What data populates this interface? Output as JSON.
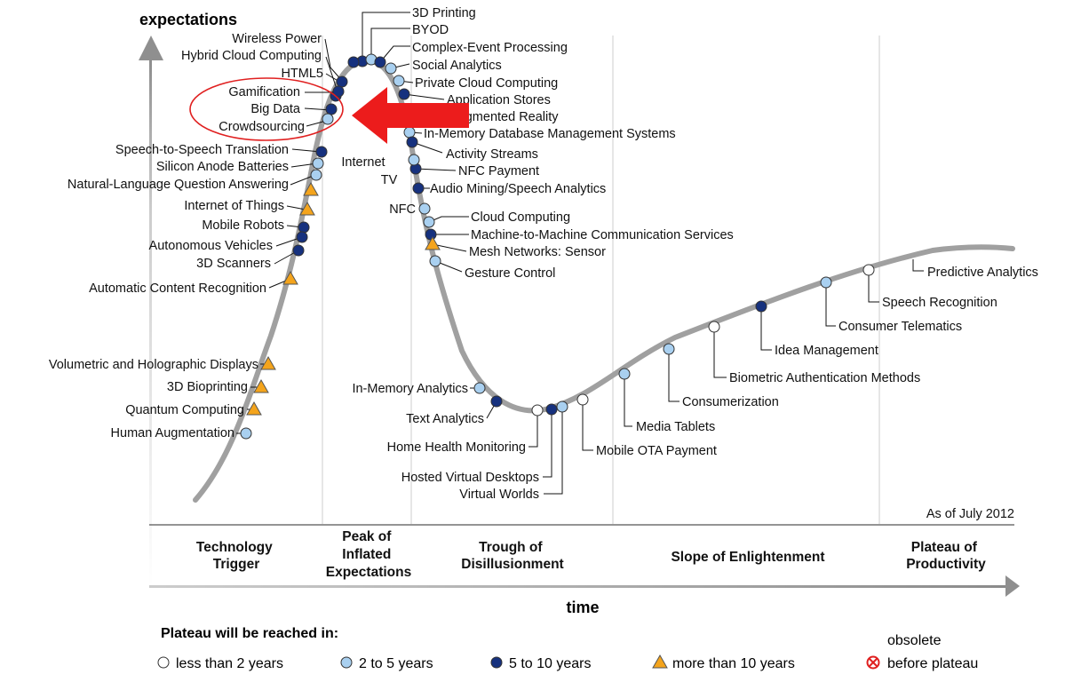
{
  "axis": {
    "y_label": "expectations",
    "x_label": "time"
  },
  "as_of": "As of July 2012",
  "phases": [
    {
      "key": "trigger",
      "lines": [
        "Technology",
        "Trigger"
      ]
    },
    {
      "key": "peak",
      "lines": [
        "Peak of",
        "Inflated",
        "Expectations"
      ]
    },
    {
      "key": "trough",
      "lines": [
        "Trough of",
        "Disillusionment"
      ]
    },
    {
      "key": "slope",
      "lines": [
        "Slope of Enlightenment"
      ]
    },
    {
      "key": "plateau",
      "lines": [
        "Plateau of",
        "Productivity"
      ]
    }
  ],
  "legend": {
    "title": "Plateau will be reached in:",
    "items": [
      {
        "key": "lt2",
        "label": "less than 2 years"
      },
      {
        "key": "2to5",
        "label": "2 to 5 years"
      },
      {
        "key": "5to10",
        "label": "5 to 10 years"
      },
      {
        "key": "gt10",
        "label": "more than 10 years"
      }
    ],
    "obsolete_top": "obsolete",
    "obsolete_bottom": "before plateau"
  },
  "colors": {
    "lt2": "#ffffff",
    "2to5": "#a9d0f0",
    "5to10": "#16317e",
    "gt10": "#f4a41c",
    "curve": "#a0a0a0",
    "highlight": "#e02020"
  },
  "technologies": [
    {
      "name": "3D Printing",
      "category": "5to10"
    },
    {
      "name": "BYOD",
      "category": "2to5"
    },
    {
      "name": "Complex-Event Processing",
      "category": "5to10"
    },
    {
      "name": "Social Analytics",
      "category": "2to5"
    },
    {
      "name": "Private Cloud Computing",
      "category": "2to5"
    },
    {
      "name": "Application Stores",
      "category": "5to10"
    },
    {
      "name": "Augmented Reality",
      "category": "5to10"
    },
    {
      "name": "In-Memory Database Management Systems",
      "category": "2to5"
    },
    {
      "name": "Activity Streams",
      "category": "5to10"
    },
    {
      "name": "NFC Payment",
      "category": "5to10"
    },
    {
      "name": "Internet TV",
      "category": "2to5"
    },
    {
      "name": "Audio Mining/Speech Analytics",
      "category": "5to10"
    },
    {
      "name": "NFC",
      "category": "2to5"
    },
    {
      "name": "Cloud Computing",
      "category": "2to5"
    },
    {
      "name": "Machine-to-Machine Communication Services",
      "category": "5to10"
    },
    {
      "name": "Mesh Networks: Sensor",
      "category": "gt10"
    },
    {
      "name": "Gesture Control",
      "category": "2to5"
    },
    {
      "name": "Wireless Power",
      "category": "5to10"
    },
    {
      "name": "Hybrid Cloud Computing",
      "category": "5to10"
    },
    {
      "name": "HTML5",
      "category": "5to10"
    },
    {
      "name": "Gamification",
      "category": "5to10"
    },
    {
      "name": "Big Data",
      "category": "5to10"
    },
    {
      "name": "Crowdsourcing",
      "category": "2to5"
    },
    {
      "name": "Speech-to-Speech Translation",
      "category": "5to10"
    },
    {
      "name": "Silicon Anode Batteries",
      "category": "2to5"
    },
    {
      "name": "Natural-Language Question Answering",
      "category": "2to5"
    },
    {
      "name": "Internet of Things",
      "category": "gt10"
    },
    {
      "name": "Mobile Robots",
      "category": "gt10"
    },
    {
      "name": "Autonomous Vehicles",
      "category": "5to10"
    },
    {
      "name": "3D Scanners",
      "category": "5to10"
    },
    {
      "name": "Automatic Content Recognition",
      "category": "5to10"
    },
    {
      "name": "Volumetric and Holographic Displays",
      "category": "gt10"
    },
    {
      "name": "3D Bioprinting",
      "category": "gt10"
    },
    {
      "name": "Quantum Computing",
      "category": "gt10"
    },
    {
      "name": "Human Augmentation",
      "category": "gt10"
    },
    {
      "name": "In-Memory Analytics",
      "category": "2to5"
    },
    {
      "name": "Text Analytics",
      "category": "2to5"
    },
    {
      "name": "Home Health Monitoring",
      "category": "5to10"
    },
    {
      "name": "Hosted Virtual Desktops",
      "category": "lt2"
    },
    {
      "name": "Virtual Worlds",
      "category": "5to10"
    },
    {
      "name": "Mobile OTA Payment",
      "category": "2to5"
    },
    {
      "name": "Media Tablets",
      "category": "lt2"
    },
    {
      "name": "Consumerization",
      "category": "2to5"
    },
    {
      "name": "Biometric Authentication Methods",
      "category": "2to5"
    },
    {
      "name": "Idea Management",
      "category": "lt2"
    },
    {
      "name": "Consumer Telematics",
      "category": "5to10"
    },
    {
      "name": "Speech Recognition",
      "category": "2to5"
    },
    {
      "name": "Predictive Analytics",
      "category": "lt2"
    }
  ]
}
